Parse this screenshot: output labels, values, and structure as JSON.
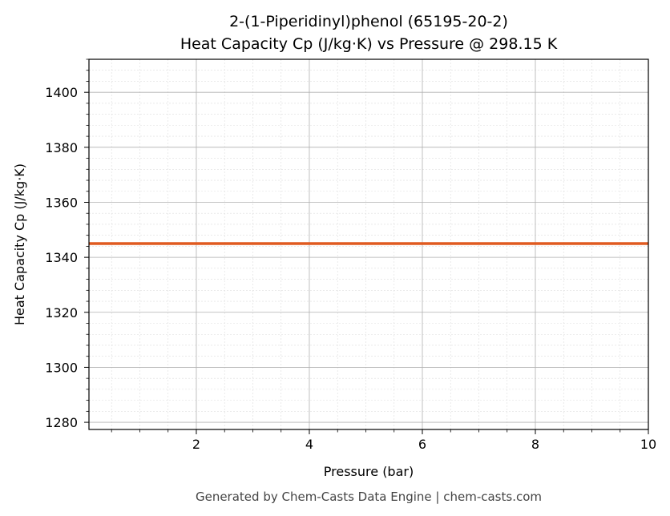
{
  "chart_data": {
    "type": "line",
    "title": "2-(1-Piperidinyl)phenol (65195-20-2)",
    "subtitle": "Heat Capacity Cp (J/kg·K) vs Pressure @ 298.15 K",
    "xlabel": "Pressure (bar)",
    "ylabel": "Heat Capacity Cp (J/kg·K)",
    "xlim": [
      0.1,
      10
    ],
    "ylim": [
      1277.4,
      1412
    ],
    "xticks": [
      2,
      4,
      6,
      8,
      10
    ],
    "yticks": [
      1280,
      1300,
      1320,
      1340,
      1360,
      1380,
      1400
    ],
    "grid": true,
    "minor_grid": true,
    "series": [
      {
        "x": [
          0.1,
          10
        ],
        "y": [
          1345,
          1345
        ],
        "color": "#e05a20"
      }
    ]
  },
  "footer": "Generated by Chem-Casts Data Engine | chem-casts.com"
}
